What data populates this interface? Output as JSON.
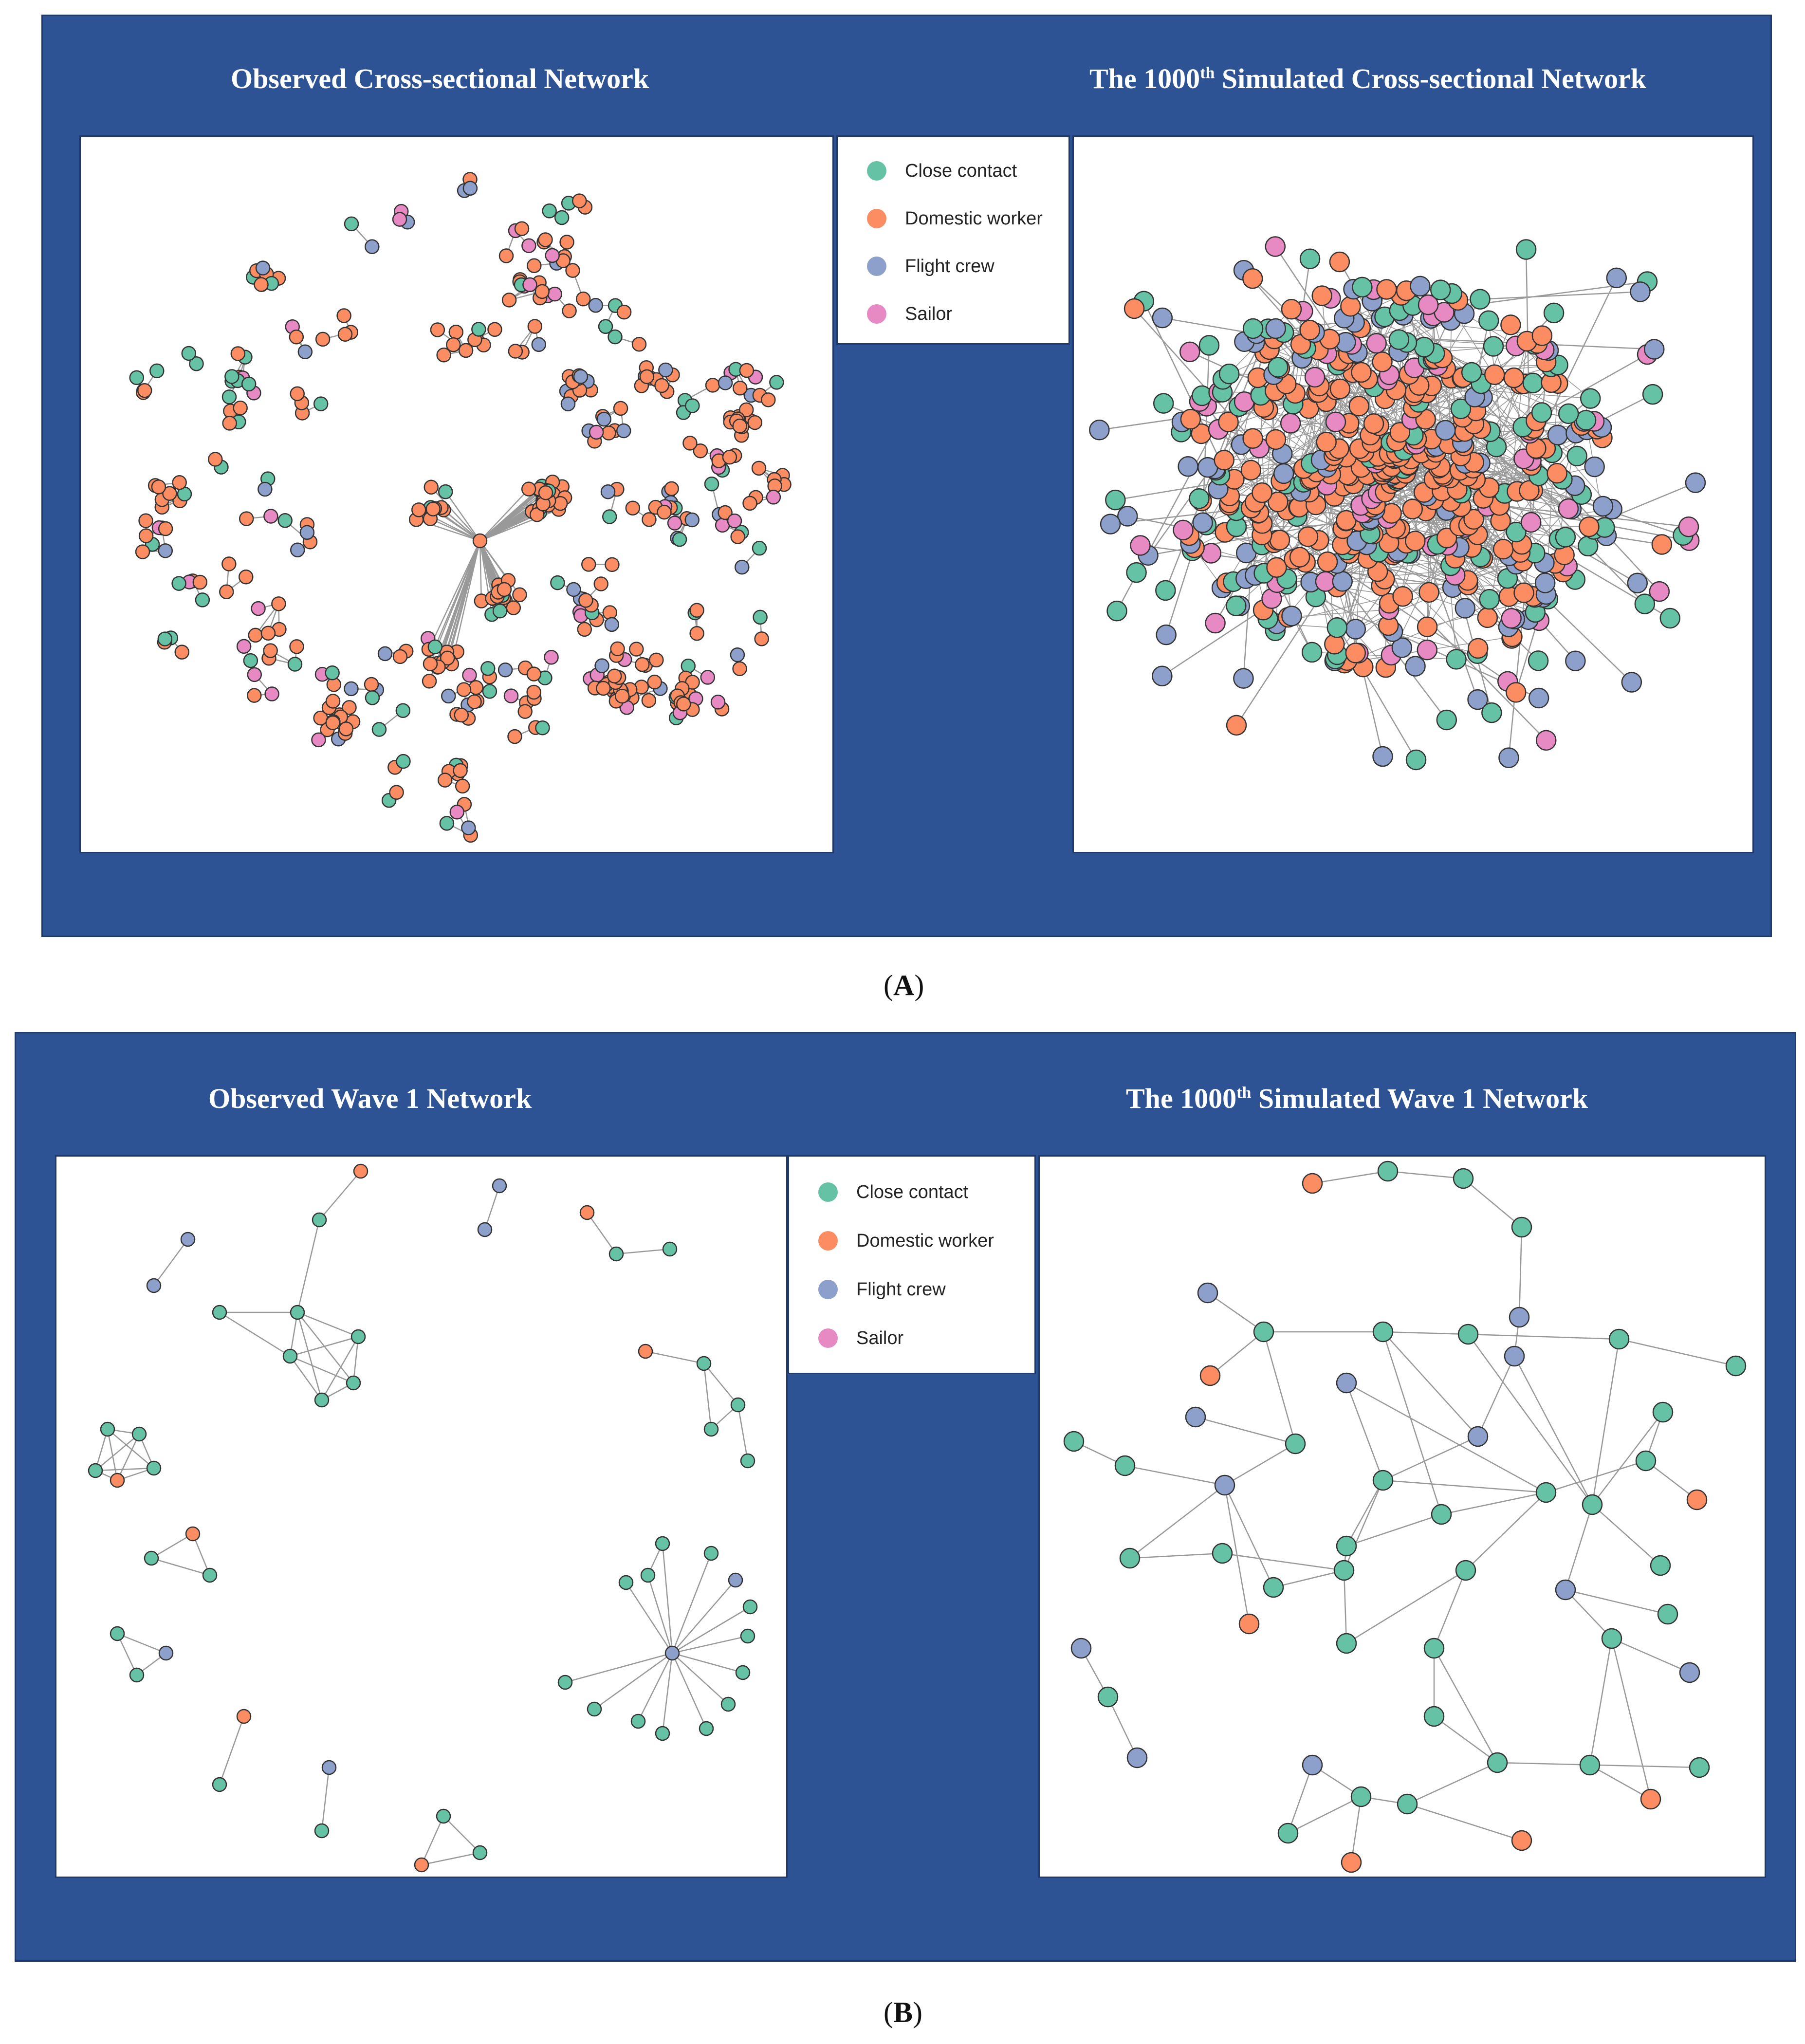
{
  "colors": {
    "close_contact": "#66c2a5",
    "domestic_worker": "#fc8d62",
    "flight_crew": "#8da0cb",
    "sailor": "#e78ac3",
    "panel_bg": "#2e5394",
    "edge": "#999999"
  },
  "legend": [
    {
      "key": "close_contact",
      "label": "Close contact"
    },
    {
      "key": "domestic_worker",
      "label": "Domestic worker"
    },
    {
      "key": "flight_crew",
      "label": "Flight crew"
    },
    {
      "key": "sailor",
      "label": "Sailor"
    }
  ],
  "panel_a": {
    "caption": "A",
    "left_title": "Observed Cross-sectional Network",
    "right_title_prefix": "The 1000",
    "right_title_sup": "th",
    "right_title_suffix": " Simulated Cross-sectional Network"
  },
  "panel_b": {
    "caption": "B",
    "left_title": "Observed Wave 1 Network",
    "right_title_prefix": "The 1000",
    "right_title_sup": "th",
    "right_title_suffix": " Simulated Wave 1 Network"
  }
}
